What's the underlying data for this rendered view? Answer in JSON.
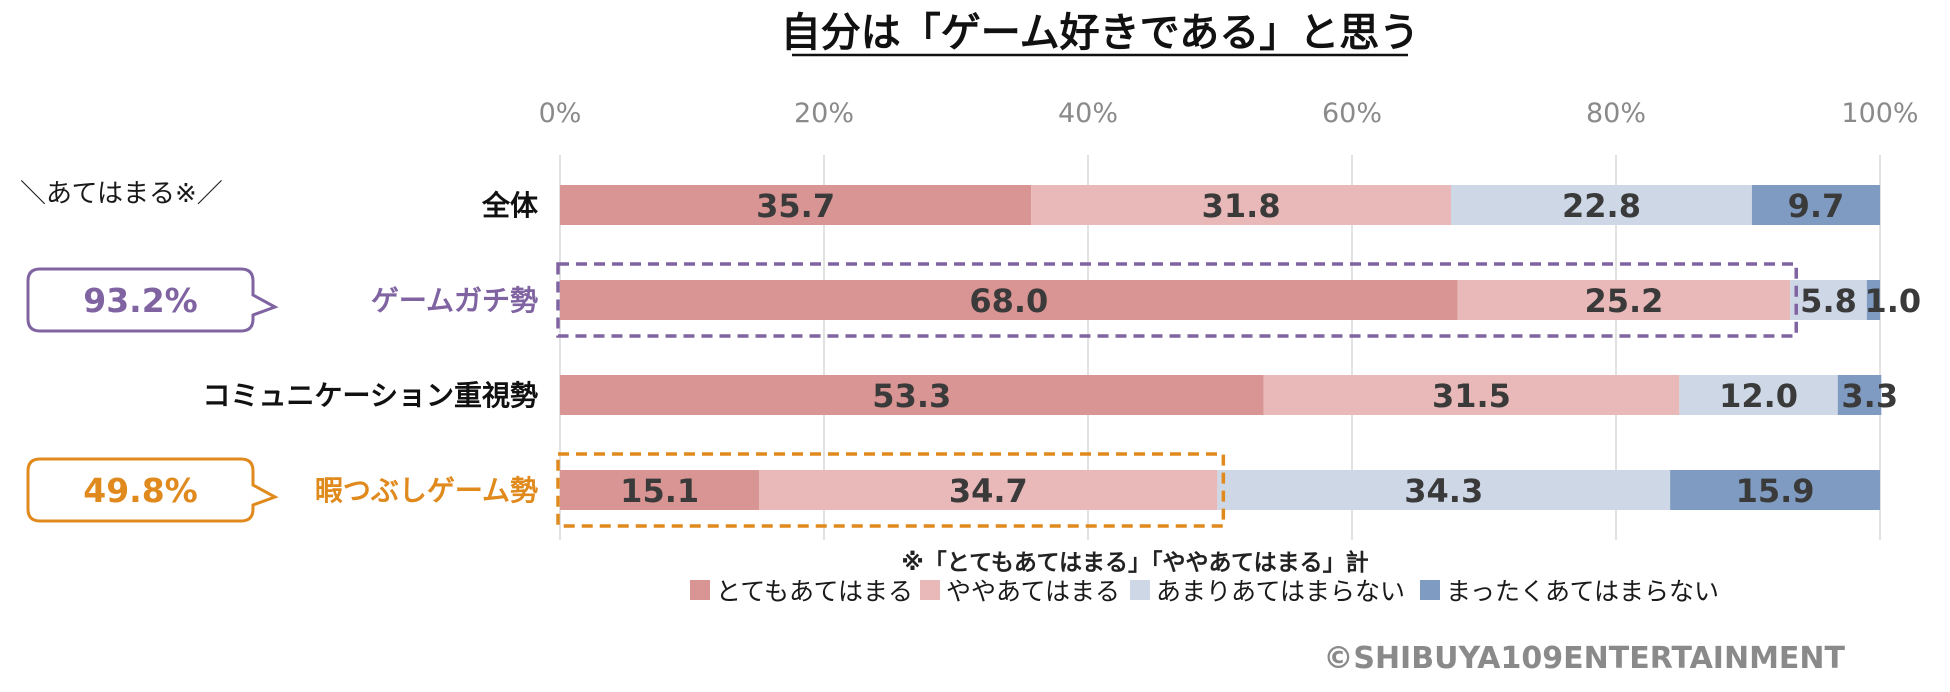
{
  "chart_data": {
    "type": "bar",
    "orientation": "horizontal",
    "stacked": true,
    "title": "自分は「ゲーム好きである」と思う",
    "xlim": [
      0,
      100
    ],
    "x_ticks": [
      "0%",
      "20%",
      "40%",
      "60%",
      "80%",
      "100%"
    ],
    "categories": [
      "全体",
      "ゲームガチ勢",
      "コミュニケーション重視勢",
      "暇つぶしゲーム勢"
    ],
    "series": [
      {
        "name": "とてもあてはまる",
        "color": "#d99594",
        "values": [
          35.7,
          68.0,
          53.3,
          15.1
        ],
        "labels": [
          "35.7",
          "68.0",
          "53.3",
          "15.1"
        ]
      },
      {
        "name": "ややあてはまる",
        "color": "#e8b9b8",
        "values": [
          31.8,
          25.2,
          31.5,
          34.7
        ],
        "labels": [
          "31.8",
          "25.2",
          "31.5",
          "34.7"
        ]
      },
      {
        "name": "あまりあてはまらない",
        "color": "#cdd7e6",
        "values": [
          22.8,
          5.8,
          12.0,
          34.3
        ],
        "labels": [
          "22.8",
          "5.8",
          "12.0",
          "34.3"
        ]
      },
      {
        "name": "まったくあてはまらない",
        "color": "#7f9bc1",
        "values": [
          9.7,
          1.0,
          3.3,
          15.9
        ],
        "labels": [
          "9.7",
          "1.0",
          "3.3",
          "15.9"
        ]
      }
    ],
    "category_colors": [
      "#111111",
      "#8064a2",
      "#111111",
      "#e08a1e"
    ],
    "legend_position": "bottom",
    "grid": true,
    "annotations": {
      "header": "＼あてはまる※／",
      "callouts": [
        {
          "category_index": 1,
          "text": "93.2%",
          "color": "#8064a2"
        },
        {
          "category_index": 3,
          "text": "49.8%",
          "color": "#e08a1e"
        }
      ],
      "footnote": "※「とてもあてはまる」「ややあてはまる」計"
    }
  },
  "copyright": "©SHIBUYA109ENTERTAINMENT"
}
